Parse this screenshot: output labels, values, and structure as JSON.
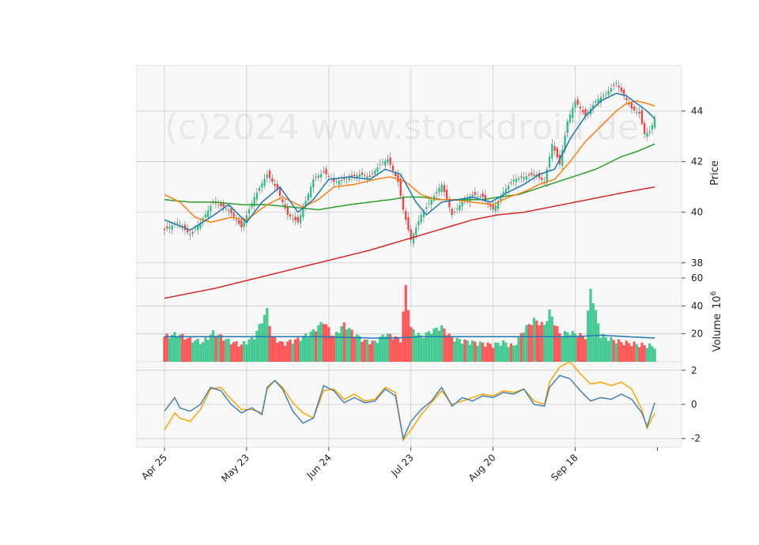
{
  "chart_data": {
    "type": "candlestick",
    "watermark": "(c)2024 www.stockdroid.de",
    "colors": {
      "up": "#26c281",
      "down": "#ff3b3b",
      "ma_short": "#1f77b4",
      "ma_mid": "#ff7f0e",
      "ma_long": "#2ca02c",
      "ma_200": "#d62728",
      "macd": "#4682b4",
      "signal": "#ffa500",
      "vol_ma": "#1f77b4"
    },
    "x_ticks": [
      "Apr 25",
      "May 23",
      "Jun 24",
      "Jul 23",
      "Aug 20",
      "Sep 18"
    ],
    "price": {
      "ylabel": "Price",
      "ylim": [
        37.4,
        45.8
      ],
      "ticks": [
        38,
        40,
        42,
        44
      ]
    },
    "volume": {
      "ylabel": "Volume",
      "ylabel_exp": "6",
      "ylim": [
        0,
        60
      ],
      "ticks": [
        20,
        40,
        60
      ]
    },
    "macd": {
      "ylim": [
        -2.5,
        2.5
      ],
      "ticks": [
        -2,
        0,
        2
      ]
    },
    "anchors": {
      "close": [
        [
          0,
          39.3
        ],
        [
          5,
          39.6
        ],
        [
          10,
          39.1
        ],
        [
          14,
          39.6
        ],
        [
          19,
          40.4
        ],
        [
          25,
          40.1
        ],
        [
          30,
          39.4
        ],
        [
          35,
          40.6
        ],
        [
          40,
          41.5
        ],
        [
          44,
          40.9
        ],
        [
          48,
          39.9
        ],
        [
          52,
          39.6
        ],
        [
          58,
          41.3
        ],
        [
          62,
          41.6
        ],
        [
          66,
          41.2
        ],
        [
          70,
          41.3
        ],
        [
          76,
          41.5
        ],
        [
          80,
          41.4
        ],
        [
          84,
          41.9
        ],
        [
          87,
          42.1
        ],
        [
          91,
          41.2
        ],
        [
          93,
          40.1
        ],
        [
          96,
          38.9
        ],
        [
          100,
          39.9
        ],
        [
          104,
          40.5
        ],
        [
          108,
          41.1
        ],
        [
          112,
          39.9
        ],
        [
          116,
          40.4
        ],
        [
          120,
          40.7
        ],
        [
          124,
          40.6
        ],
        [
          128,
          40.1
        ],
        [
          132,
          40.8
        ],
        [
          136,
          41.3
        ],
        [
          140,
          41.4
        ],
        [
          144,
          41.5
        ],
        [
          148,
          41.2
        ],
        [
          151,
          42.7
        ],
        [
          154,
          41.9
        ],
        [
          157,
          43.6
        ],
        [
          160,
          44.4
        ],
        [
          164,
          43.8
        ],
        [
          168,
          44.4
        ],
        [
          172,
          44.7
        ],
        [
          176,
          45.1
        ],
        [
          179,
          44.6
        ],
        [
          182,
          44.1
        ],
        [
          185,
          43.9
        ],
        [
          187,
          43.1
        ],
        [
          189,
          43.2
        ],
        [
          191,
          43.7
        ]
      ],
      "ma_short": [
        [
          0,
          39.7
        ],
        [
          10,
          39.3
        ],
        [
          18,
          39.8
        ],
        [
          25,
          40.3
        ],
        [
          32,
          39.6
        ],
        [
          38,
          40.4
        ],
        [
          45,
          41.0
        ],
        [
          52,
          40.0
        ],
        [
          58,
          40.5
        ],
        [
          64,
          41.3
        ],
        [
          72,
          41.4
        ],
        [
          80,
          41.3
        ],
        [
          86,
          41.7
        ],
        [
          92,
          41.5
        ],
        [
          98,
          40.4
        ],
        [
          102,
          39.9
        ],
        [
          108,
          40.4
        ],
        [
          114,
          40.5
        ],
        [
          120,
          40.6
        ],
        [
          127,
          40.4
        ],
        [
          134,
          40.8
        ],
        [
          140,
          41.1
        ],
        [
          146,
          41.5
        ],
        [
          152,
          41.7
        ],
        [
          158,
          42.9
        ],
        [
          164,
          43.8
        ],
        [
          170,
          44.4
        ],
        [
          176,
          44.7
        ],
        [
          180,
          44.6
        ],
        [
          184,
          44.3
        ],
        [
          188,
          44.0
        ],
        [
          191,
          43.7
        ]
      ],
      "ma_mid": [
        [
          0,
          40.7
        ],
        [
          6,
          40.4
        ],
        [
          12,
          39.8
        ],
        [
          18,
          39.6
        ],
        [
          26,
          39.8
        ],
        [
          32,
          39.7
        ],
        [
          40,
          40.3
        ],
        [
          46,
          40.6
        ],
        [
          54,
          40.2
        ],
        [
          60,
          40.5
        ],
        [
          66,
          41.0
        ],
        [
          74,
          41.1
        ],
        [
          82,
          41.3
        ],
        [
          88,
          41.4
        ],
        [
          94,
          41.2
        ],
        [
          100,
          40.7
        ],
        [
          106,
          40.5
        ],
        [
          112,
          40.5
        ],
        [
          120,
          40.4
        ],
        [
          128,
          40.3
        ],
        [
          134,
          40.6
        ],
        [
          140,
          40.8
        ],
        [
          146,
          41.1
        ],
        [
          152,
          41.3
        ],
        [
          158,
          42.0
        ],
        [
          164,
          42.8
        ],
        [
          170,
          43.4
        ],
        [
          176,
          44.0
        ],
        [
          180,
          44.3
        ],
        [
          184,
          44.4
        ],
        [
          188,
          44.3
        ],
        [
          191,
          44.2
        ]
      ],
      "ma_long": [
        [
          0,
          40.5
        ],
        [
          10,
          40.4
        ],
        [
          20,
          40.4
        ],
        [
          30,
          40.3
        ],
        [
          40,
          40.3
        ],
        [
          50,
          40.2
        ],
        [
          60,
          40.1
        ],
        [
          66,
          40.2
        ],
        [
          72,
          40.3
        ],
        [
          80,
          40.4
        ],
        [
          88,
          40.5
        ],
        [
          94,
          40.6
        ],
        [
          100,
          40.6
        ],
        [
          108,
          40.5
        ],
        [
          116,
          40.5
        ],
        [
          124,
          40.5
        ],
        [
          130,
          40.6
        ],
        [
          138,
          40.7
        ],
        [
          144,
          40.9
        ],
        [
          150,
          41.1
        ],
        [
          156,
          41.3
        ],
        [
          162,
          41.5
        ],
        [
          168,
          41.7
        ],
        [
          174,
          42.0
        ],
        [
          178,
          42.2
        ],
        [
          184,
          42.4
        ],
        [
          191,
          42.7
        ]
      ],
      "ma_200": [
        [
          0,
          36.6
        ],
        [
          20,
          37.0
        ],
        [
          40,
          37.5
        ],
        [
          60,
          38.0
        ],
        [
          80,
          38.5
        ],
        [
          100,
          39.1
        ],
        [
          110,
          39.4
        ],
        [
          120,
          39.7
        ],
        [
          130,
          39.9
        ],
        [
          140,
          40.0
        ],
        [
          150,
          40.2
        ],
        [
          160,
          40.4
        ],
        [
          170,
          40.6
        ],
        [
          180,
          40.8
        ],
        [
          191,
          41.0
        ]
      ],
      "volume": [
        [
          0,
          18
        ],
        [
          5,
          20
        ],
        [
          10,
          16
        ],
        [
          15,
          14
        ],
        [
          19,
          21
        ],
        [
          25,
          15
        ],
        [
          30,
          12
        ],
        [
          35,
          18
        ],
        [
          40,
          37
        ],
        [
          42,
          18
        ],
        [
          46,
          13
        ],
        [
          52,
          16
        ],
        [
          58,
          22
        ],
        [
          62,
          29
        ],
        [
          66,
          18
        ],
        [
          70,
          27
        ],
        [
          74,
          20
        ],
        [
          78,
          15
        ],
        [
          82,
          14
        ],
        [
          86,
          20
        ],
        [
          92,
          16
        ],
        [
          94,
          54
        ],
        [
          96,
          24
        ],
        [
          100,
          18
        ],
        [
          104,
          22
        ],
        [
          108,
          25
        ],
        [
          112,
          17
        ],
        [
          116,
          15
        ],
        [
          120,
          14
        ],
        [
          124,
          13
        ],
        [
          128,
          12
        ],
        [
          132,
          14
        ],
        [
          136,
          11
        ],
        [
          140,
          23
        ],
        [
          144,
          30
        ],
        [
          148,
          26
        ],
        [
          150,
          36
        ],
        [
          154,
          20
        ],
        [
          158,
          21
        ],
        [
          162,
          19
        ],
        [
          164,
          18
        ],
        [
          166,
          52
        ],
        [
          170,
          19
        ],
        [
          174,
          16
        ],
        [
          178,
          14
        ],
        [
          182,
          13
        ],
        [
          186,
          12
        ],
        [
          191,
          11
        ]
      ],
      "vol_ma": [
        [
          0,
          18
        ],
        [
          20,
          18
        ],
        [
          40,
          18
        ],
        [
          60,
          18
        ],
        [
          80,
          17
        ],
        [
          90,
          17
        ],
        [
          100,
          18
        ],
        [
          110,
          18
        ],
        [
          120,
          18
        ],
        [
          130,
          18
        ],
        [
          140,
          18
        ],
        [
          150,
          18
        ],
        [
          160,
          18
        ],
        [
          170,
          19
        ],
        [
          180,
          18
        ],
        [
          191,
          17
        ]
      ],
      "macd_line": [
        [
          0,
          -0.4
        ],
        [
          4,
          0.4
        ],
        [
          6,
          -0.2
        ],
        [
          10,
          -0.4
        ],
        [
          14,
          0.0
        ],
        [
          18,
          1.0
        ],
        [
          22,
          0.8
        ],
        [
          26,
          0.0
        ],
        [
          30,
          -0.5
        ],
        [
          34,
          -0.2
        ],
        [
          38,
          -0.6
        ],
        [
          40,
          1.0
        ],
        [
          43,
          1.4
        ],
        [
          46,
          0.9
        ],
        [
          50,
          -0.4
        ],
        [
          54,
          -1.1
        ],
        [
          58,
          -0.8
        ],
        [
          62,
          1.1
        ],
        [
          66,
          0.8
        ],
        [
          70,
          0.1
        ],
        [
          74,
          0.4
        ],
        [
          78,
          0.1
        ],
        [
          82,
          0.2
        ],
        [
          86,
          0.9
        ],
        [
          90,
          0.5
        ],
        [
          93,
          -2.0
        ],
        [
          96,
          -1.0
        ],
        [
          100,
          -0.3
        ],
        [
          104,
          0.2
        ],
        [
          108,
          1.0
        ],
        [
          112,
          -0.1
        ],
        [
          116,
          0.4
        ],
        [
          120,
          0.2
        ],
        [
          124,
          0.5
        ],
        [
          128,
          0.4
        ],
        [
          132,
          0.7
        ],
        [
          136,
          0.6
        ],
        [
          140,
          0.9
        ],
        [
          144,
          0.0
        ],
        [
          148,
          -0.1
        ],
        [
          150,
          1.0
        ],
        [
          154,
          1.7
        ],
        [
          158,
          1.5
        ],
        [
          162,
          0.8
        ],
        [
          166,
          0.2
        ],
        [
          170,
          0.4
        ],
        [
          174,
          0.3
        ],
        [
          178,
          0.6
        ],
        [
          182,
          0.3
        ],
        [
          186,
          -0.5
        ],
        [
          188,
          -1.3
        ],
        [
          191,
          0.1
        ]
      ],
      "signal_line": [
        [
          0,
          -1.5
        ],
        [
          4,
          -0.5
        ],
        [
          6,
          -0.8
        ],
        [
          10,
          -1.0
        ],
        [
          14,
          -0.3
        ],
        [
          18,
          0.9
        ],
        [
          22,
          1.0
        ],
        [
          26,
          0.3
        ],
        [
          30,
          -0.3
        ],
        [
          34,
          -0.3
        ],
        [
          38,
          -0.5
        ],
        [
          40,
          0.9
        ],
        [
          43,
          1.4
        ],
        [
          46,
          1.0
        ],
        [
          50,
          0.1
        ],
        [
          54,
          -0.5
        ],
        [
          58,
          -0.8
        ],
        [
          62,
          0.8
        ],
        [
          66,
          0.9
        ],
        [
          70,
          0.3
        ],
        [
          74,
          0.6
        ],
        [
          78,
          0.2
        ],
        [
          82,
          0.3
        ],
        [
          86,
          1.0
        ],
        [
          90,
          0.7
        ],
        [
          93,
          -2.1
        ],
        [
          96,
          -1.5
        ],
        [
          100,
          -0.6
        ],
        [
          104,
          0.1
        ],
        [
          108,
          0.8
        ],
        [
          112,
          0.0
        ],
        [
          116,
          0.2
        ],
        [
          120,
          0.4
        ],
        [
          124,
          0.6
        ],
        [
          128,
          0.5
        ],
        [
          132,
          0.8
        ],
        [
          136,
          0.7
        ],
        [
          140,
          0.9
        ],
        [
          144,
          0.2
        ],
        [
          148,
          0.0
        ],
        [
          150,
          1.3
        ],
        [
          154,
          2.2
        ],
        [
          158,
          2.5
        ],
        [
          162,
          1.8
        ],
        [
          166,
          1.2
        ],
        [
          170,
          1.3
        ],
        [
          174,
          1.1
        ],
        [
          178,
          1.3
        ],
        [
          182,
          0.9
        ],
        [
          186,
          -0.3
        ],
        [
          188,
          -1.4
        ],
        [
          191,
          -0.5
        ]
      ]
    }
  }
}
